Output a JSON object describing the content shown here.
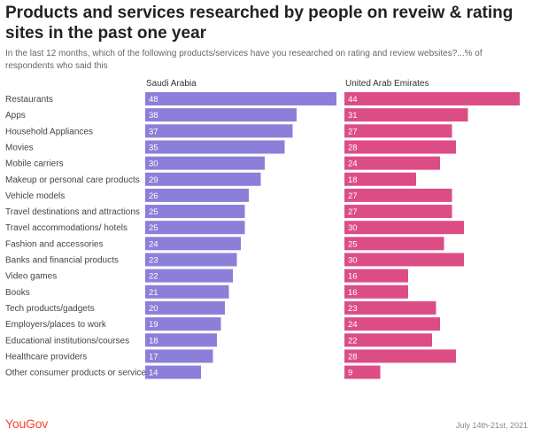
{
  "chart_data": {
    "type": "bar",
    "title": "Products and services researched by people on reveiw & rating sites in the past one year",
    "subtitle": "In the last 12 months, which of the following products/services have you researched on rating and review websites?...% of respondents who said this",
    "categories": [
      "Restaurants",
      "Apps",
      "Household Appliances",
      "Movies",
      "Mobile carriers",
      "Makeup or personal care products",
      "Vehicle models",
      "Travel destinations and attractions",
      "Travel accommodations/ hotels",
      "Fashion and accessories",
      "Banks and financial products",
      "Video games",
      "Books",
      "Tech products/gadgets",
      "Employers/places to work",
      "Educational institutions/courses",
      "Healthcare providers",
      "Other consumer products or service"
    ],
    "series": [
      {
        "name": "Saudi Arabia",
        "color": "#8b7fd9",
        "values": [
          48,
          38,
          37,
          35,
          30,
          29,
          26,
          25,
          25,
          24,
          23,
          22,
          21,
          20,
          19,
          18,
          17,
          14
        ]
      },
      {
        "name": "United Arab Emirates",
        "color": "#dc4d86",
        "values": [
          44,
          31,
          27,
          28,
          24,
          18,
          27,
          27,
          30,
          25,
          30,
          16,
          16,
          23,
          24,
          22,
          28,
          9
        ]
      }
    ],
    "xlim": [
      0,
      48
    ],
    "grid": false,
    "legend": "column headers",
    "data_labels": true
  },
  "footer": {
    "brand": "YouGov",
    "date": "July 14th-21st, 2021"
  }
}
